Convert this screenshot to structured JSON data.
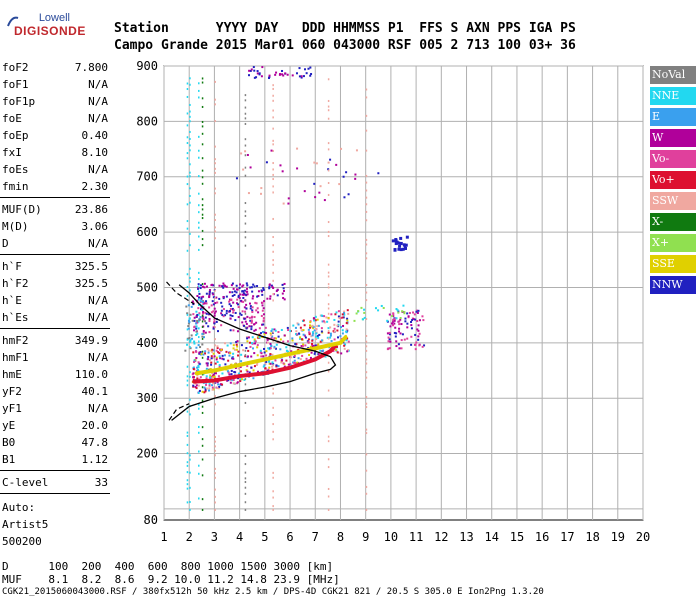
{
  "logo": {
    "top": "Lowell",
    "name": "DIGISONDE"
  },
  "header": {
    "labels": [
      "Station",
      "YYYY",
      "DAY",
      "DDD",
      "HHMMSS",
      "P1",
      "FFS",
      "S",
      "AXN",
      "PPS",
      "IGA",
      "PS"
    ],
    "line1": "Station      YYYY DAY   DDD HHMMSS P1  FFS S AXN PPS IGA PS",
    "line2": "Campo Grande 2015 Mar01 060 043000 RSF 005 2 713 100 03+ 36"
  },
  "params": {
    "group1": [
      {
        "k": "foF2",
        "v": "7.800"
      },
      {
        "k": "foF1",
        "v": "N/A"
      },
      {
        "k": "foF1p",
        "v": "N/A"
      },
      {
        "k": "foE",
        "v": "N/A"
      },
      {
        "k": "foEp",
        "v": "0.40"
      },
      {
        "k": "fxI",
        "v": "8.10"
      },
      {
        "k": "foEs",
        "v": "N/A"
      },
      {
        "k": "fmin",
        "v": "2.30"
      }
    ],
    "group2": [
      {
        "k": "MUF(D)",
        "v": "23.86"
      },
      {
        "k": "M(D)",
        "v": "3.06"
      },
      {
        "k": "D",
        "v": "N/A"
      }
    ],
    "group3": [
      {
        "k": "h`F",
        "v": "325.5"
      },
      {
        "k": "h`F2",
        "v": "325.5"
      },
      {
        "k": "h`E",
        "v": "N/A"
      },
      {
        "k": "h`Es",
        "v": "N/A"
      }
    ],
    "group4": [
      {
        "k": "hmF2",
        "v": "349.9"
      },
      {
        "k": "hmF1",
        "v": "N/A"
      },
      {
        "k": "hmE",
        "v": "110.0"
      },
      {
        "k": "yF2",
        "v": "40.1"
      },
      {
        "k": "yF1",
        "v": "N/A"
      },
      {
        "k": "yE",
        "v": "20.0"
      },
      {
        "k": "B0",
        "v": "47.8"
      },
      {
        "k": "B1",
        "v": "1.12"
      }
    ],
    "group5": [
      {
        "k": "C-level",
        "v": "33"
      }
    ],
    "auto_lines": [
      "Auto:",
      "Artist5",
      "500200"
    ]
  },
  "legend": [
    {
      "label": "NoVal",
      "bg": "#808080",
      "fg": "#ffffff"
    },
    {
      "label": "NNE",
      "bg": "#22d8f0",
      "fg": "#ffffff"
    },
    {
      "label": "E",
      "bg": "#3aa0ee",
      "fg": "#ffffff"
    },
    {
      "label": "W",
      "bg": "#b0009a",
      "fg": "#ffffff"
    },
    {
      "label": "Vo-",
      "bg": "#e0409c",
      "fg": "#ffffff"
    },
    {
      "label": "Vo+",
      "bg": "#dd1030",
      "fg": "#ffffff"
    },
    {
      "label": "SSW",
      "bg": "#f0a8a0",
      "fg": "#ffffff"
    },
    {
      "label": "X-",
      "bg": "#107a10",
      "fg": "#ffffff"
    },
    {
      "label": "X+",
      "bg": "#90e050",
      "fg": "#ffffff"
    },
    {
      "label": "SSE",
      "bg": "#e0d000",
      "fg": "#ffffff"
    },
    {
      "label": "NNW",
      "bg": "#2020c0",
      "fg": "#ffffff"
    }
  ],
  "chart_data": {
    "type": "scatter",
    "title": "",
    "xlabel": "",
    "ylabel": "",
    "xlim": [
      1,
      20
    ],
    "ylim": [
      80,
      900
    ],
    "x_ticks": [
      1,
      2,
      3,
      4,
      5,
      6,
      7,
      8,
      9,
      10,
      11,
      12,
      13,
      14,
      15,
      16,
      17,
      18,
      19,
      20
    ],
    "y_ticks": [
      100,
      200,
      300,
      400,
      500,
      600,
      700,
      800,
      900
    ],
    "y_tick_labels_shown": [
      80,
      200,
      300,
      400,
      500,
      600,
      700,
      800,
      900
    ],
    "grid": true,
    "traces": [
      {
        "name": "F2 O-trace",
        "color": "#dd1030",
        "points": [
          [
            2.2,
            330
          ],
          [
            3,
            332
          ],
          [
            4,
            340
          ],
          [
            5,
            345
          ],
          [
            6,
            355
          ],
          [
            7,
            370
          ],
          [
            7.6,
            385
          ],
          [
            7.8,
            395
          ]
        ]
      },
      {
        "name": "F2 X-trace",
        "color": "#e0d000",
        "points": [
          [
            2.3,
            345
          ],
          [
            3,
            350
          ],
          [
            4,
            360
          ],
          [
            5,
            370
          ],
          [
            6,
            380
          ],
          [
            7,
            390
          ],
          [
            8,
            400
          ],
          [
            8.2,
            410
          ]
        ]
      }
    ],
    "profile_curve": [
      [
        1.3,
        260
      ],
      [
        2,
        285
      ],
      [
        3,
        300
      ],
      [
        4,
        312
      ],
      [
        5,
        320
      ],
      [
        6,
        330
      ],
      [
        7,
        345
      ],
      [
        7.6,
        352
      ],
      [
        7.8,
        360
      ],
      [
        7.6,
        375
      ],
      [
        7,
        385
      ],
      [
        6,
        395
      ],
      [
        5,
        410
      ],
      [
        4,
        425
      ],
      [
        3,
        445
      ],
      [
        2.4,
        470
      ],
      [
        2,
        490
      ],
      [
        1.6,
        505
      ]
    ],
    "dashed_lower": [
      [
        1.2,
        260
      ],
      [
        1.5,
        280
      ],
      [
        2,
        290
      ]
    ],
    "dashed_upper": [
      [
        1.1,
        510
      ],
      [
        1.5,
        490
      ],
      [
        2.2,
        470
      ]
    ]
  },
  "footer": {
    "line1": "D      100  200  400  600  800 1000 1500 3000 [km]",
    "line2": "MUF    8.1  8.2  8.6  9.2 10.0 11.2 14.8 23.9 [MHz]",
    "line3": "CGK21_2015060043000.RSF / 380fx512h 50 kHz 2.5 km / DPS-4D CGK21 821 / 20.5 S 305.0 E Ion2Png 1.3.20"
  }
}
